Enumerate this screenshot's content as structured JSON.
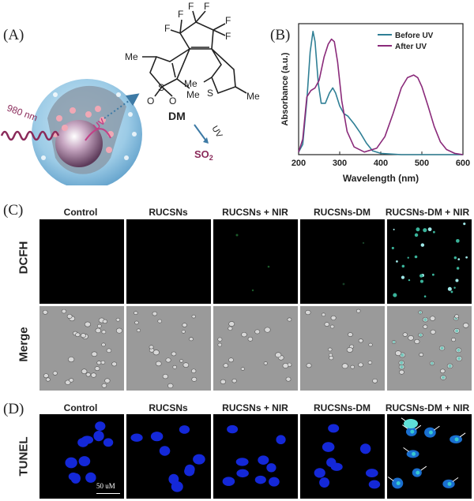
{
  "panel_a": {
    "label": "(A)",
    "laser_label": "980 nm",
    "uv_label": "UV",
    "molecule_name": "DM",
    "arrow_label": "UV",
    "product_main": "SO",
    "product_sub": "2",
    "substituents": {
      "f": "F",
      "me": "Me",
      "s": "S",
      "o": "O"
    }
  },
  "panel_b": {
    "label": "(B)",
    "chart_data": {
      "type": "line",
      "title": "",
      "xlabel": "Wavelength (nm)",
      "ylabel": "Absorbance (a.u.)",
      "xlim": [
        200,
        600
      ],
      "xticks": [
        "200",
        "300",
        "400",
        "500",
        "600"
      ],
      "legend_position": "top-right",
      "series": [
        {
          "name": "Before UV",
          "color": "#2f7f95",
          "x": [
            200,
            210,
            220,
            228,
            235,
            240,
            248,
            255,
            265,
            275,
            283,
            290,
            300,
            310,
            320,
            335,
            350,
            365,
            380,
            400,
            450,
            500,
            550,
            600
          ],
          "y": [
            0.02,
            0.08,
            0.42,
            0.8,
            0.96,
            0.88,
            0.55,
            0.4,
            0.4,
            0.48,
            0.52,
            0.48,
            0.38,
            0.32,
            0.3,
            0.24,
            0.17,
            0.09,
            0.03,
            0.01,
            0.0,
            0.0,
            0.0,
            0.0
          ]
        },
        {
          "name": "After UV",
          "color": "#8a2a7a",
          "x": [
            200,
            210,
            220,
            230,
            240,
            250,
            262,
            272,
            280,
            287,
            295,
            305,
            318,
            335,
            360,
            390,
            410,
            430,
            450,
            465,
            480,
            490,
            500,
            515,
            530,
            545,
            560,
            580,
            600
          ],
          "y": [
            0.02,
            0.12,
            0.45,
            0.5,
            0.52,
            0.58,
            0.76,
            0.86,
            0.9,
            0.88,
            0.72,
            0.42,
            0.18,
            0.06,
            0.02,
            0.05,
            0.14,
            0.32,
            0.52,
            0.6,
            0.62,
            0.6,
            0.53,
            0.38,
            0.22,
            0.1,
            0.04,
            0.01,
            0.0
          ]
        }
      ]
    }
  },
  "panel_c": {
    "label": "(C)",
    "columns": [
      "Control",
      "RUCSNs",
      "RUCSNs + NIR",
      "RUCSNs-DM",
      "RUCSNs-DM + NIR"
    ],
    "rows": [
      "DCFH",
      "Merge"
    ]
  },
  "panel_d": {
    "label": "(D)",
    "columns": [
      "Control",
      "RUCSNs",
      "RUCSNs + NIR",
      "RUCSNs-DM",
      "RUCSNs-DM + NIR"
    ],
    "row": "TUNEL",
    "scale_bar": "50 uM"
  }
}
